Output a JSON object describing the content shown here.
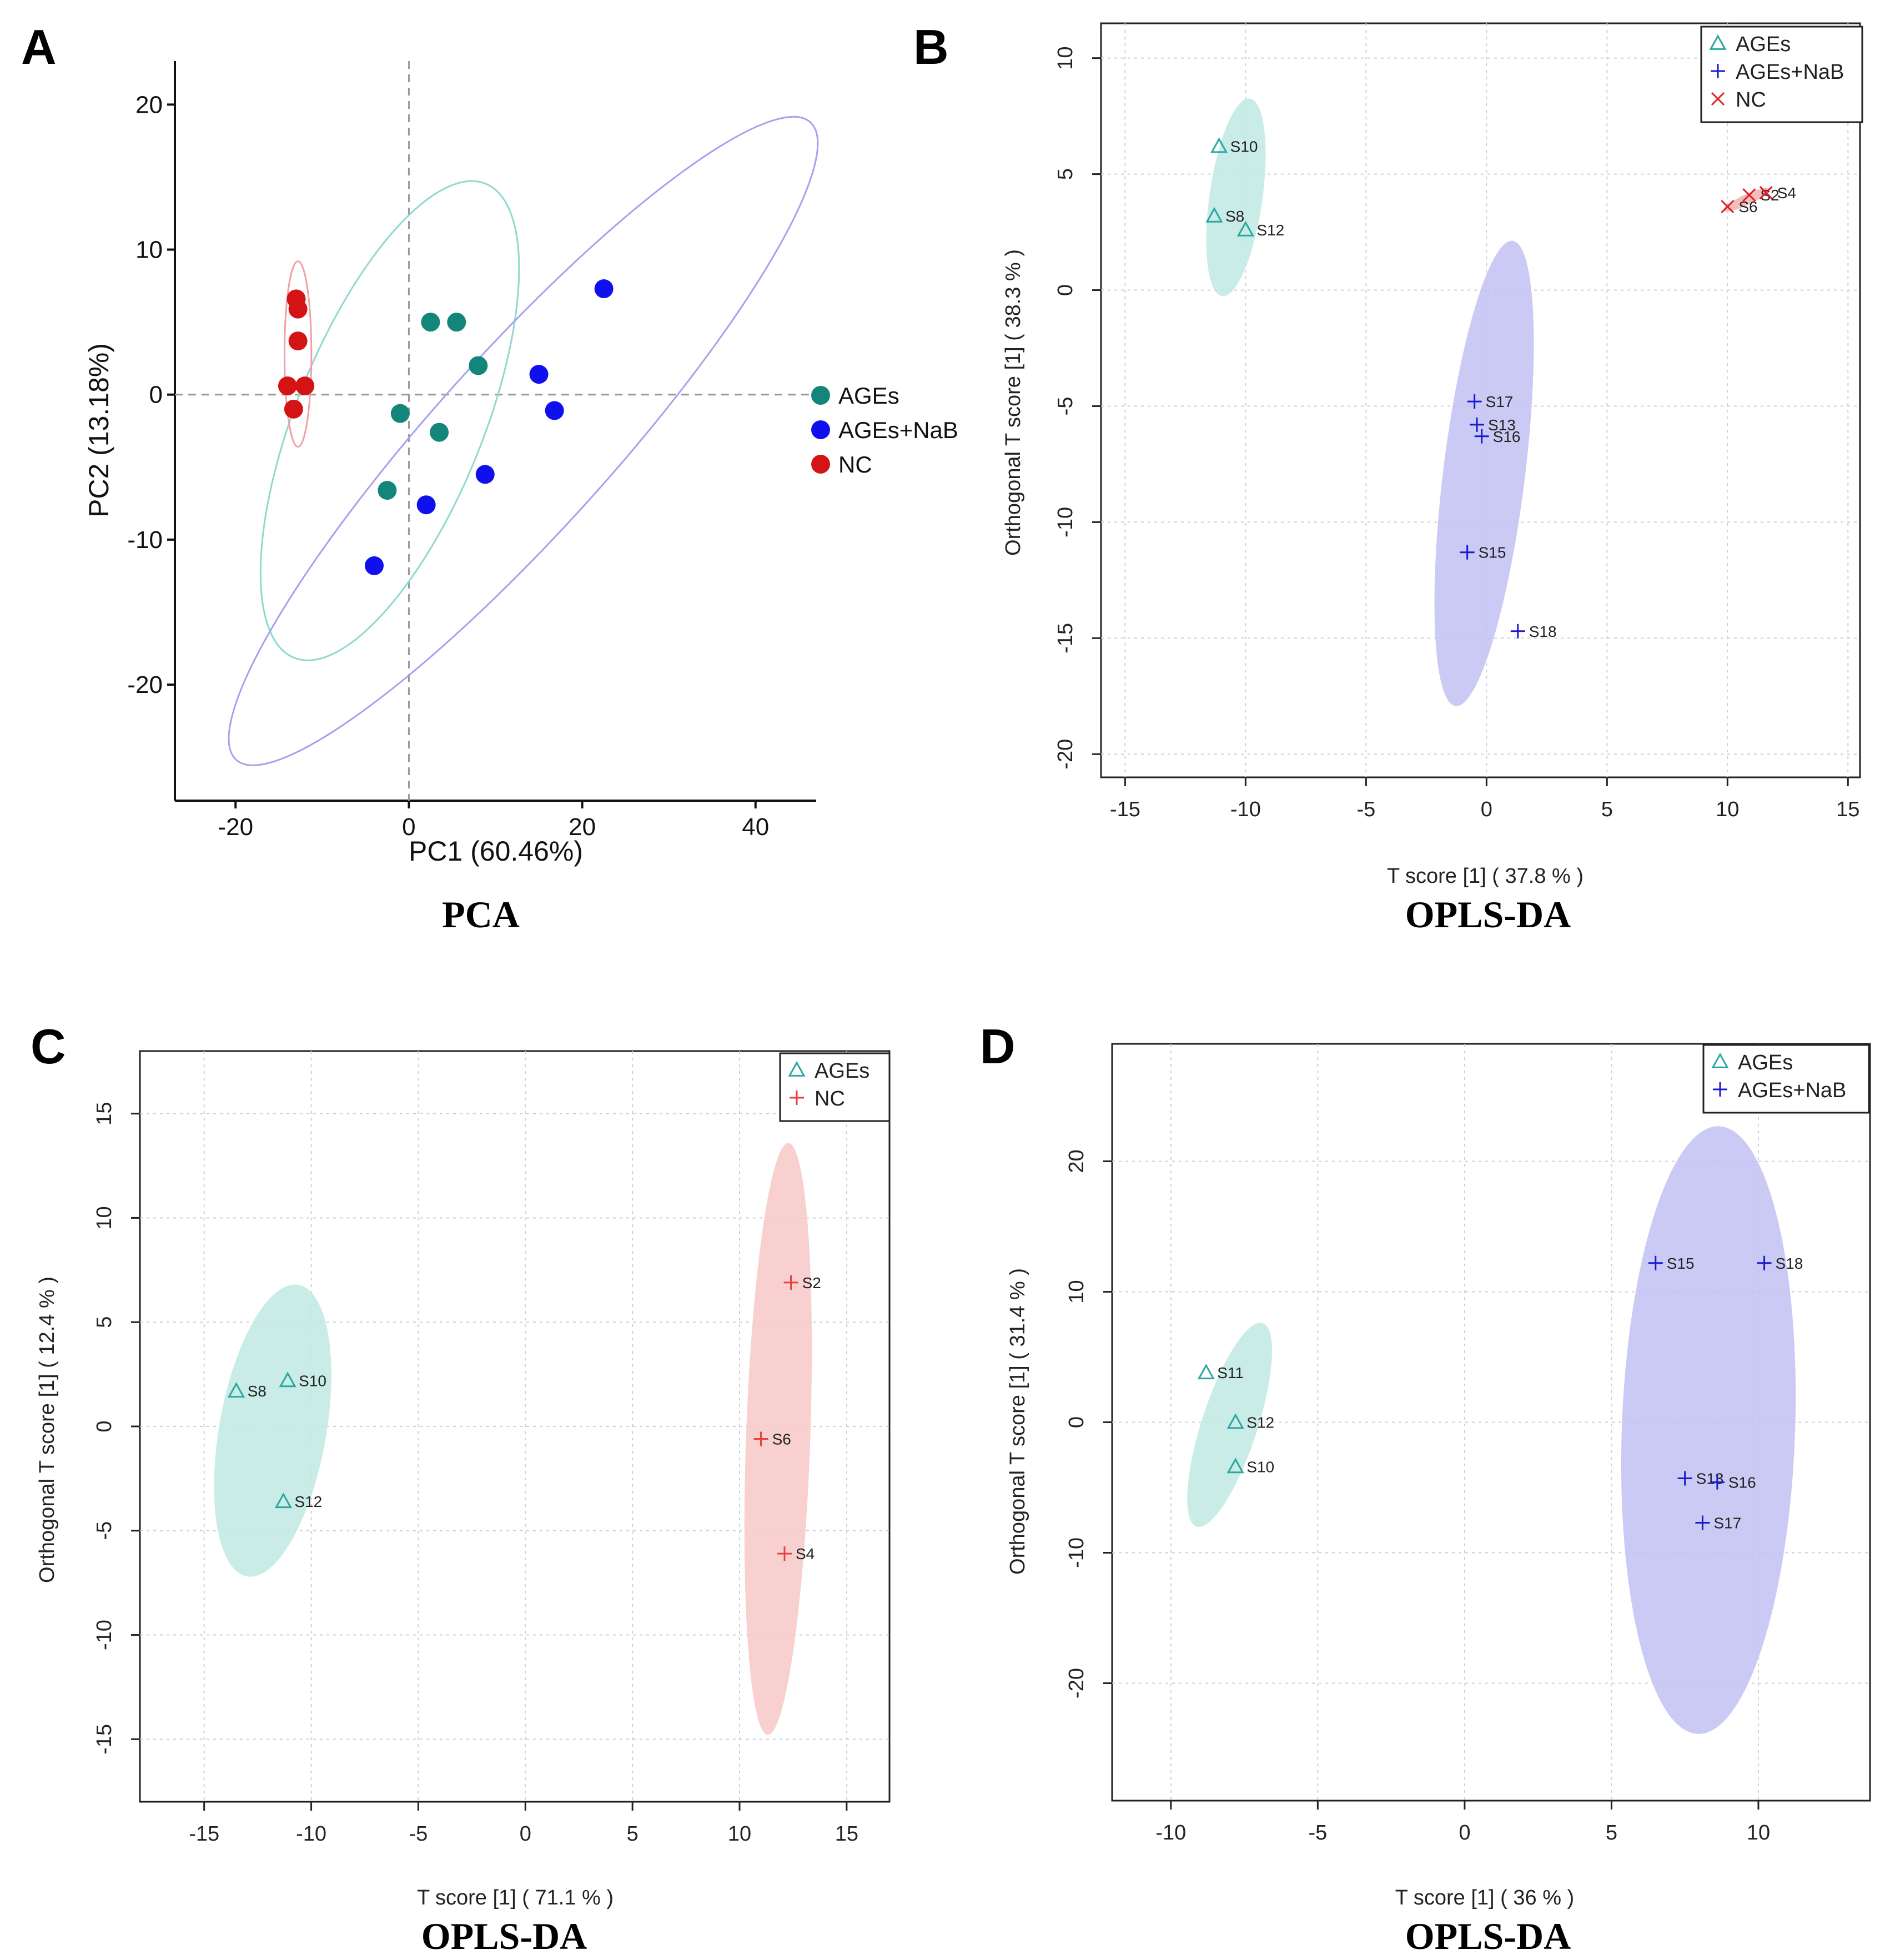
{
  "chart_data": [
    {
      "panel": "A",
      "type": "scatter",
      "caption": "PCA",
      "xlabel": "PC1 (60.46%)",
      "ylabel": "PC2 (13.18%)",
      "xlim": [
        -27,
        47
      ],
      "ylim": [
        -28,
        23
      ],
      "xticks": [
        -20,
        0,
        20,
        40
      ],
      "yticks": [
        -20,
        -10,
        0,
        10,
        20
      ],
      "legend": "right",
      "series": [
        {
          "name": "AGEs",
          "color": "#14857a",
          "points": [
            [
              2.5,
              5
            ],
            [
              5.5,
              5
            ],
            [
              8,
              2
            ],
            [
              -1,
              -1.3
            ],
            [
              3.5,
              -2.6
            ],
            [
              -2.5,
              -6.6
            ]
          ],
          "ellipse": {
            "cx": -2.2,
            "cy": -1.8,
            "rx": 29.5,
            "ry": 10.8,
            "angle": 68,
            "color": "#8fd9cf"
          }
        },
        {
          "name": "AGEs+NaB",
          "color": "#1010ee",
          "points": [
            [
              22.5,
              7.3
            ],
            [
              15,
              1.4
            ],
            [
              16.8,
              -1.1
            ],
            [
              8.8,
              -5.5
            ],
            [
              2,
              -7.6
            ],
            [
              -4,
              -11.8
            ]
          ],
          "ellipse": {
            "cx": 13.2,
            "cy": -3.2,
            "rx": 49.5,
            "ry": 10.2,
            "angle": 48,
            "color": "#a8a0ee"
          }
        },
        {
          "name": "NC",
          "color": "#d41414",
          "points": [
            [
              -13,
              6.6
            ],
            [
              -12.8,
              5.9
            ],
            [
              -12.8,
              3.7
            ],
            [
              -14,
              0.6
            ],
            [
              -12,
              0.6
            ],
            [
              -13.3,
              -1
            ]
          ],
          "ellipse": {
            "cx": -12.8,
            "cy": 2.8,
            "rx": 10.7,
            "ry": 1.55,
            "angle": 90,
            "color": "#f0a0a8"
          }
        }
      ]
    },
    {
      "panel": "B",
      "type": "scatter",
      "caption": "OPLS-DA",
      "xlabel": "T score [1] ( 37.8 % )",
      "ylabel": "Orthogonal T score [1] ( 38.3 % )",
      "xlim": [
        -16,
        15.5
      ],
      "ylim": [
        -21,
        11.5
      ],
      "xticks": [
        -15,
        -10,
        -5,
        0,
        5,
        10,
        15
      ],
      "yticks": [
        -20,
        -15,
        -10,
        -5,
        0,
        5,
        10
      ],
      "legend": "top-right",
      "series": [
        {
          "name": "AGEs",
          "marker": "triangle",
          "color": "#2aa7a0",
          "points": [
            {
              "x": -11.1,
              "y": 6.2,
              "label": "S10"
            },
            {
              "x": -11.3,
              "y": 3.2,
              "label": "S8"
            },
            {
              "x": -10,
              "y": 2.6,
              "label": "S12"
            }
          ],
          "ellipse": {
            "cx": -10.4,
            "cy": 4.0,
            "rx": 4.3,
            "ry": 1.1,
            "angle": 82,
            "color": "#bfe9e3"
          }
        },
        {
          "name": "AGEs+NaB",
          "marker": "plus",
          "color": "#1a1ad0",
          "points": [
            {
              "x": -0.5,
              "y": -4.8,
              "label": "S17"
            },
            {
              "x": -0.4,
              "y": -5.8,
              "label": "S13"
            },
            {
              "x": -0.2,
              "y": -6.3,
              "label": "S16"
            },
            {
              "x": -0.8,
              "y": -11.3,
              "label": "S15"
            },
            {
              "x": 1.3,
              "y": -14.7,
              "label": "S18"
            }
          ],
          "ellipse": {
            "cx": -0.1,
            "cy": -7.9,
            "rx": 10.1,
            "ry": 1.7,
            "angle": 83,
            "color": "#c1c1f2"
          }
        },
        {
          "name": "NC",
          "marker": "cross",
          "color": "#e02020",
          "points": [
            {
              "x": 10,
              "y": 3.6,
              "label": "S6"
            },
            {
              "x": 10.9,
              "y": 4.1,
              "label": "S2"
            },
            {
              "x": 11.6,
              "y": 4.2,
              "label": "S4"
            }
          ],
          "ellipse": {
            "cx": 10.8,
            "cy": 3.9,
            "rx": 1.1,
            "ry": 0.22,
            "angle": 25,
            "color": "#f3b0b0"
          }
        }
      ]
    },
    {
      "panel": "C",
      "type": "scatter",
      "caption": "OPLS-DA",
      "xlabel": "T score [1] ( 71.1 % )",
      "ylabel": "Orthogonal T score [1] ( 12.4 % )",
      "xlim": [
        -18,
        17
      ],
      "ylim": [
        -18,
        18
      ],
      "xticks": [
        -15,
        -10,
        -5,
        0,
        5,
        10,
        15
      ],
      "yticks": [
        -15,
        -10,
        -5,
        0,
        5,
        10,
        15
      ],
      "legend": "top-right",
      "series": [
        {
          "name": "AGEs",
          "marker": "triangle",
          "color": "#2aa7a0",
          "points": [
            {
              "x": -13.5,
              "y": 1.7,
              "label": "S8"
            },
            {
              "x": -11.1,
              "y": 2.2,
              "label": "S10"
            },
            {
              "x": -11.3,
              "y": -3.6,
              "label": "S12"
            }
          ],
          "ellipse": {
            "cx": -11.8,
            "cy": -0.2,
            "rx": 7.1,
            "ry": 2.5,
            "angle": 80,
            "color": "#bfe9e3"
          }
        },
        {
          "name": "NC",
          "marker": "plus",
          "color": "#e84040",
          "points": [
            {
              "x": 12.4,
              "y": 6.9,
              "label": "S2"
            },
            {
              "x": 11,
              "y": -0.6,
              "label": "S6"
            },
            {
              "x": 12.1,
              "y": -6.1,
              "label": "S4"
            }
          ],
          "ellipse": {
            "cx": 11.8,
            "cy": -0.6,
            "rx": 14.2,
            "ry": 1.5,
            "angle": 88,
            "color": "#f8c8c8"
          }
        }
      ]
    },
    {
      "panel": "D",
      "type": "scatter",
      "caption": "OPLS-DA",
      "xlabel": "T score [1] ( 36 % )",
      "ylabel": "Orthogonal T score [1] ( 31.4 % )",
      "xlim": [
        -12,
        13.8
      ],
      "ylim": [
        -29,
        29
      ],
      "xticks": [
        -10,
        -5,
        0,
        5,
        10
      ],
      "yticks": [
        -20,
        -10,
        0,
        10,
        20
      ],
      "legend": "top-right",
      "series": [
        {
          "name": "AGEs",
          "marker": "triangle",
          "color": "#2aa7a0",
          "points": [
            {
              "x": -8.8,
              "y": 3.8,
              "label": "S11"
            },
            {
              "x": -7.8,
              "y": 0,
              "label": "S12"
            },
            {
              "x": -7.8,
              "y": -3.4,
              "label": "S10"
            }
          ],
          "ellipse": {
            "cx": -8.0,
            "cy": -0.2,
            "rx": 8.2,
            "ry": 0.95,
            "angle": 72,
            "color": "#bfe9e3"
          }
        },
        {
          "name": "AGEs+NaB",
          "marker": "plus",
          "color": "#1a1ad0",
          "points": [
            {
              "x": 6.5,
              "y": 12.2,
              "label": "S15"
            },
            {
              "x": 10.2,
              "y": 12.2,
              "label": "S18"
            },
            {
              "x": 7.5,
              "y": -4.3,
              "label": "S13"
            },
            {
              "x": 8.6,
              "y": -4.6,
              "label": "S16"
            },
            {
              "x": 8.1,
              "y": -7.7,
              "label": "S17"
            }
          ],
          "ellipse": {
            "cx": 8.3,
            "cy": -0.6,
            "rx": 23.3,
            "ry": 2.95,
            "angle": 88,
            "color": "#c1c1f2"
          }
        }
      ]
    }
  ]
}
